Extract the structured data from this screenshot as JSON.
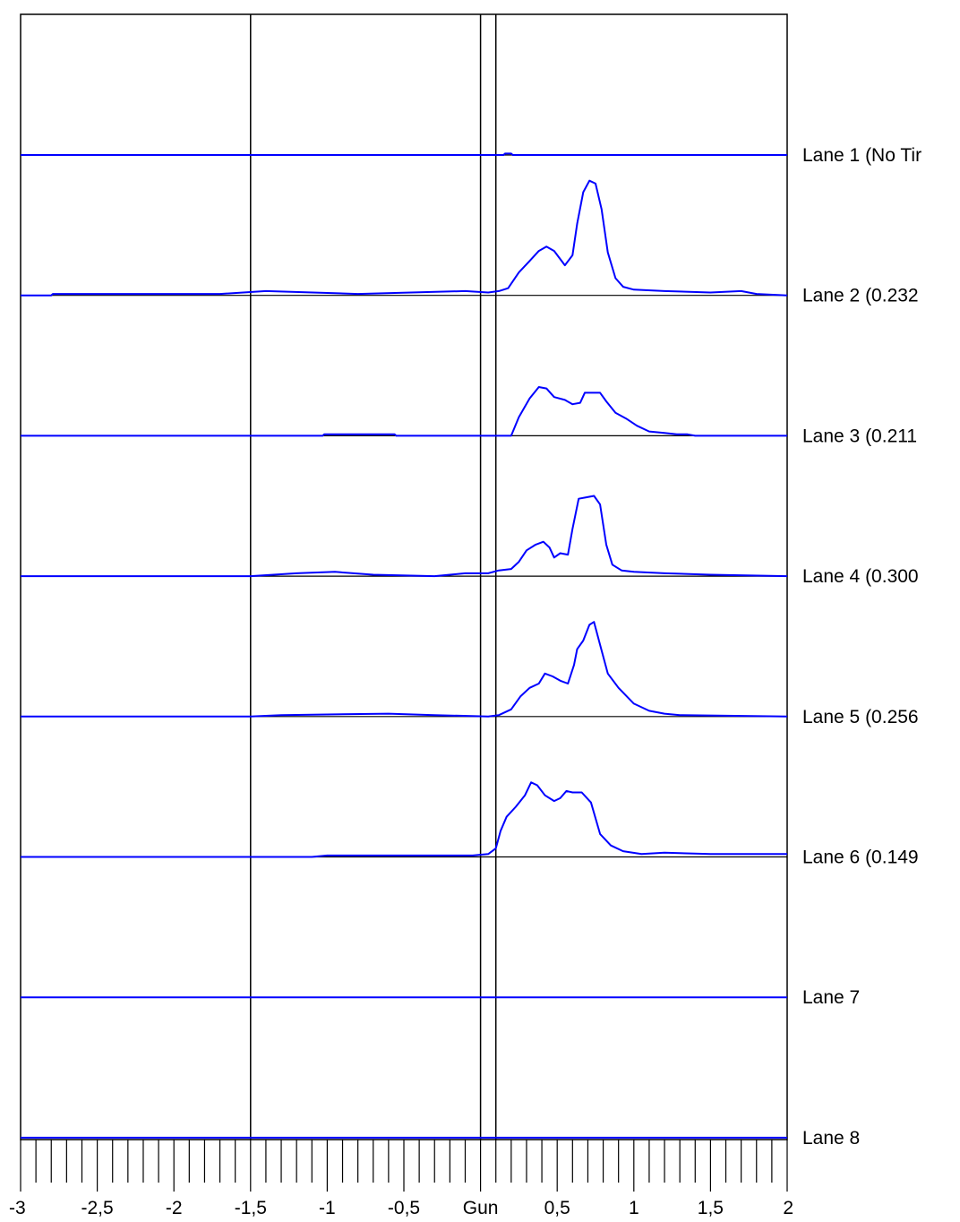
{
  "chart_data": {
    "type": "line",
    "title": "",
    "xlabel": "",
    "ylabel": "",
    "xlim": [
      -3,
      2
    ],
    "grid": false,
    "legend": "none",
    "series_color": "#0000ff",
    "axis_color": "#000000",
    "reference_lines_x": [
      -1.5,
      0,
      0.1
    ],
    "x_ticks": [
      {
        "value": -3,
        "label": "-3"
      },
      {
        "value": -2.5,
        "label": "-2,5"
      },
      {
        "value": -2,
        "label": "-2"
      },
      {
        "value": -1.5,
        "label": "-1,5"
      },
      {
        "value": -1,
        "label": "-1"
      },
      {
        "value": -0.5,
        "label": "-0,5"
      },
      {
        "value": 0,
        "label": "Gun"
      },
      {
        "value": 0.5,
        "label": "0,5"
      },
      {
        "value": 1,
        "label": "1"
      },
      {
        "value": 1.5,
        "label": "1,5"
      },
      {
        "value": 2,
        "label": "2"
      }
    ],
    "minor_tick_step": 0.1,
    "lanes": [
      {
        "label": "Lane 1 (No Tir",
        "points": [
          [
            -3,
            0
          ],
          [
            0.15,
            0
          ],
          [
            0.16,
            0.01
          ],
          [
            0.2,
            0.01
          ],
          [
            0.21,
            0
          ],
          [
            2,
            0
          ]
        ]
      },
      {
        "label": "Lane 2 (0.232",
        "points": [
          [
            -3,
            0
          ],
          [
            -2.8,
            0
          ],
          [
            -2.79,
            0.01
          ],
          [
            -1.7,
            0.01
          ],
          [
            -1.4,
            0.03
          ],
          [
            -0.8,
            0.01
          ],
          [
            -0.1,
            0.03
          ],
          [
            0.05,
            0.02
          ],
          [
            0.12,
            0.03
          ],
          [
            0.18,
            0.05
          ],
          [
            0.25,
            0.16
          ],
          [
            0.32,
            0.24
          ],
          [
            0.38,
            0.31
          ],
          [
            0.43,
            0.34
          ],
          [
            0.48,
            0.31
          ],
          [
            0.55,
            0.21
          ],
          [
            0.6,
            0.28
          ],
          [
            0.63,
            0.5
          ],
          [
            0.67,
            0.72
          ],
          [
            0.71,
            0.8
          ],
          [
            0.75,
            0.78
          ],
          [
            0.79,
            0.6
          ],
          [
            0.83,
            0.3
          ],
          [
            0.88,
            0.12
          ],
          [
            0.93,
            0.06
          ],
          [
            1.0,
            0.04
          ],
          [
            1.2,
            0.03
          ],
          [
            1.5,
            0.02
          ],
          [
            1.7,
            0.03
          ],
          [
            1.8,
            0.01
          ],
          [
            2,
            0
          ]
        ]
      },
      {
        "label": "Lane 3 (0.211",
        "points": [
          [
            -3,
            0
          ],
          [
            -1.03,
            0
          ],
          [
            -1.02,
            0.01
          ],
          [
            -0.56,
            0.01
          ],
          [
            -0.55,
            0
          ],
          [
            0.2,
            0
          ],
          [
            0.25,
            0.13
          ],
          [
            0.32,
            0.26
          ],
          [
            0.38,
            0.34
          ],
          [
            0.43,
            0.33
          ],
          [
            0.48,
            0.27
          ],
          [
            0.55,
            0.25
          ],
          [
            0.6,
            0.22
          ],
          [
            0.65,
            0.23
          ],
          [
            0.68,
            0.3
          ],
          [
            0.73,
            0.3
          ],
          [
            0.78,
            0.3
          ],
          [
            0.82,
            0.24
          ],
          [
            0.88,
            0.16
          ],
          [
            0.95,
            0.12
          ],
          [
            1.02,
            0.07
          ],
          [
            1.1,
            0.03
          ],
          [
            1.2,
            0.02
          ],
          [
            1.28,
            0.01
          ],
          [
            1.35,
            0.01
          ],
          [
            1.4,
            0
          ],
          [
            2,
            0
          ]
        ]
      },
      {
        "label": "Lane 4 (0.300",
        "points": [
          [
            -3,
            0
          ],
          [
            -1.5,
            0
          ],
          [
            -1.2,
            0.02
          ],
          [
            -0.95,
            0.03
          ],
          [
            -0.7,
            0.01
          ],
          [
            -0.3,
            0
          ],
          [
            -0.1,
            0.02
          ],
          [
            0.05,
            0.02
          ],
          [
            0.12,
            0.04
          ],
          [
            0.2,
            0.05
          ],
          [
            0.25,
            0.1
          ],
          [
            0.3,
            0.18
          ],
          [
            0.36,
            0.22
          ],
          [
            0.41,
            0.24
          ],
          [
            0.45,
            0.2
          ],
          [
            0.48,
            0.13
          ],
          [
            0.52,
            0.16
          ],
          [
            0.57,
            0.15
          ],
          [
            0.6,
            0.33
          ],
          [
            0.64,
            0.54
          ],
          [
            0.69,
            0.55
          ],
          [
            0.74,
            0.56
          ],
          [
            0.78,
            0.5
          ],
          [
            0.82,
            0.22
          ],
          [
            0.86,
            0.08
          ],
          [
            0.92,
            0.04
          ],
          [
            1.0,
            0.03
          ],
          [
            1.2,
            0.02
          ],
          [
            1.5,
            0.01
          ],
          [
            2,
            0
          ]
        ]
      },
      {
        "label": "Lane 5 (0.256",
        "points": [
          [
            -3,
            0
          ],
          [
            -1.5,
            0
          ],
          [
            -1.3,
            0.01
          ],
          [
            -0.6,
            0.02
          ],
          [
            -0.3,
            0.01
          ],
          [
            0.05,
            0
          ],
          [
            0.12,
            0.01
          ],
          [
            0.2,
            0.05
          ],
          [
            0.26,
            0.14
          ],
          [
            0.32,
            0.2
          ],
          [
            0.38,
            0.23
          ],
          [
            0.42,
            0.3
          ],
          [
            0.47,
            0.28
          ],
          [
            0.52,
            0.25
          ],
          [
            0.57,
            0.23
          ],
          [
            0.61,
            0.36
          ],
          [
            0.63,
            0.47
          ],
          [
            0.67,
            0.53
          ],
          [
            0.71,
            0.64
          ],
          [
            0.74,
            0.66
          ],
          [
            0.78,
            0.5
          ],
          [
            0.83,
            0.3
          ],
          [
            0.9,
            0.2
          ],
          [
            1.0,
            0.09
          ],
          [
            1.1,
            0.04
          ],
          [
            1.2,
            0.02
          ],
          [
            1.3,
            0.01
          ],
          [
            2,
            0
          ]
        ]
      },
      {
        "label": "Lane 6 (0.149",
        "points": [
          [
            -3,
            0
          ],
          [
            -1.1,
            0
          ],
          [
            -1.0,
            0.01
          ],
          [
            -0.2,
            0.01
          ],
          [
            -0.05,
            0.01
          ],
          [
            0.05,
            0.02
          ],
          [
            0.1,
            0.06
          ],
          [
            0.13,
            0.18
          ],
          [
            0.17,
            0.28
          ],
          [
            0.23,
            0.35
          ],
          [
            0.29,
            0.43
          ],
          [
            0.33,
            0.52
          ],
          [
            0.37,
            0.5
          ],
          [
            0.42,
            0.43
          ],
          [
            0.48,
            0.39
          ],
          [
            0.52,
            0.41
          ],
          [
            0.56,
            0.46
          ],
          [
            0.6,
            0.45
          ],
          [
            0.66,
            0.45
          ],
          [
            0.72,
            0.38
          ],
          [
            0.78,
            0.16
          ],
          [
            0.85,
            0.08
          ],
          [
            0.93,
            0.04
          ],
          [
            1.05,
            0.02
          ],
          [
            1.2,
            0.03
          ],
          [
            1.5,
            0.02
          ],
          [
            2,
            0.02
          ]
        ]
      },
      {
        "label": "Lane 7",
        "points": [
          [
            -3,
            0
          ],
          [
            2,
            0
          ]
        ]
      },
      {
        "label": "Lane 8",
        "points": [
          [
            -3,
            0
          ],
          [
            2,
            0
          ]
        ]
      }
    ]
  }
}
